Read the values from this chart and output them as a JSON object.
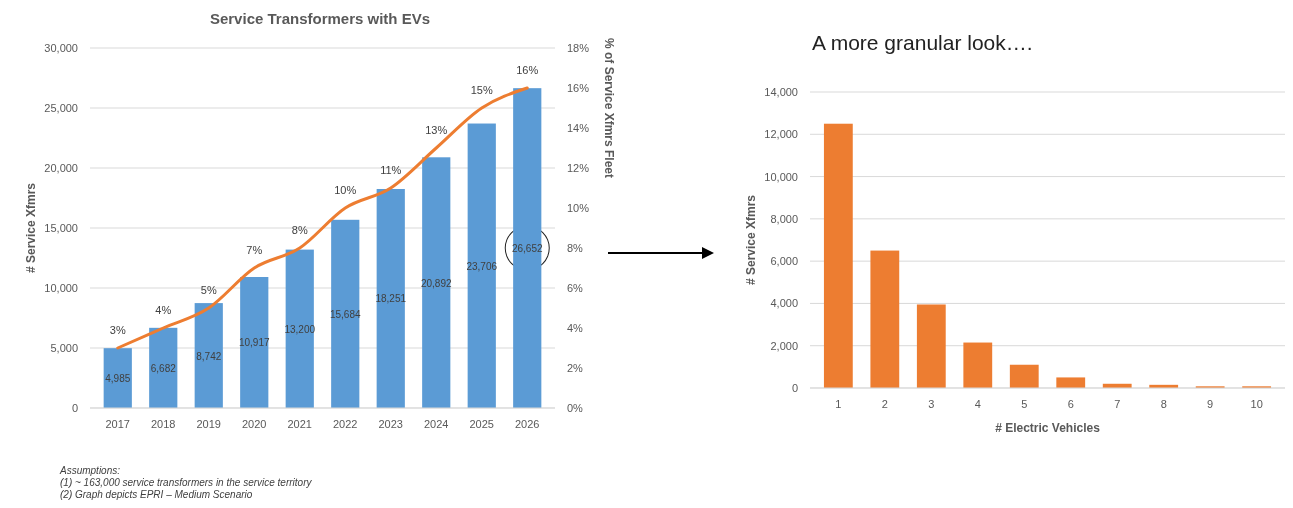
{
  "chart_data": [
    {
      "type": "bar",
      "title": "Service Transformers with EVs",
      "ylabel": "# Service Xfmrs",
      "y2label": "% of  Service Xfmrs Fleet",
      "categories": [
        "2017",
        "2018",
        "2019",
        "2020",
        "2021",
        "2022",
        "2023",
        "2024",
        "2025",
        "2026"
      ],
      "series": [
        {
          "color": "#5b9bd5",
          "values": [
            4985,
            6682,
            8742,
            10917,
            13200,
            15684,
            18251,
            20892,
            23706,
            26652
          ],
          "value_labels": [
            "4,985",
            "6,682",
            "8,742",
            "10,917",
            "13,200",
            "15,684",
            "18,251",
            "20,892",
            "23,706",
            "26,652"
          ]
        },
        {
          "type": "line",
          "axis": "y2",
          "color": "#ed7d31",
          "values": [
            3,
            4,
            5,
            7,
            8,
            10,
            11,
            13,
            15,
            16
          ],
          "value_labels": [
            "3%",
            "4%",
            "5%",
            "7%",
            "8%",
            "10%",
            "11%",
            "13%",
            "15%",
            "16%"
          ]
        }
      ],
      "ylim": [
        0,
        30000
      ],
      "yticks": [
        0,
        {
          "value": 5000,
          "label": "5,000"
        },
        {
          "value": 10000,
          "label": "10,000"
        },
        {
          "value": 15000,
          "label": "15,000"
        },
        {
          "value": 20000,
          "label": "20,000"
        },
        {
          "value": 25000,
          "label": "25,000"
        },
        {
          "value": 30000,
          "label": "30,000"
        }
      ],
      "y2lim": [
        0,
        18
      ],
      "y2ticks": [
        {
          "value": 0,
          "label": "0%"
        },
        {
          "value": 2,
          "label": "2%"
        },
        {
          "value": 4,
          "label": "4%"
        },
        {
          "value": 6,
          "label": "6%"
        },
        {
          "value": 8,
          "label": "8%"
        },
        {
          "value": 10,
          "label": "10%"
        },
        {
          "value": 12,
          "label": "12%"
        },
        {
          "value": 14,
          "label": "14%"
        },
        {
          "value": 16,
          "label": "16%"
        },
        {
          "value": 18,
          "label": "18%"
        }
      ],
      "grid": "y",
      "annotations": [
        "Assumptions:",
        "(1) ~ 163,000  service transformers in the service territory",
        "(2) Graph depicts EPRI – Medium Scenario"
      ]
    },
    {
      "type": "bar",
      "title": "A more granular look….",
      "xlabel": "# Electric Vehicles",
      "ylabel": "# Service Xfmrs",
      "categories": [
        "1",
        "2",
        "3",
        "4",
        "5",
        "6",
        "7",
        "8",
        "9",
        "10"
      ],
      "series": [
        {
          "color": "#ed7d31",
          "values": [
            12500,
            6500,
            3950,
            2150,
            1100,
            500,
            200,
            150,
            80,
            80
          ]
        }
      ],
      "ylim": [
        0,
        14000
      ],
      "yticks": [
        0,
        {
          "value": 2000,
          "label": "2,000"
        },
        {
          "value": 4000,
          "label": "4,000"
        },
        {
          "value": 6000,
          "label": "6,000"
        },
        {
          "value": 8000,
          "label": "8,000"
        },
        {
          "value": 10000,
          "label": "10,000"
        },
        {
          "value": 12000,
          "label": "12,000"
        },
        {
          "value": 14000,
          "label": "14,000"
        }
      ],
      "grid": "y"
    }
  ]
}
